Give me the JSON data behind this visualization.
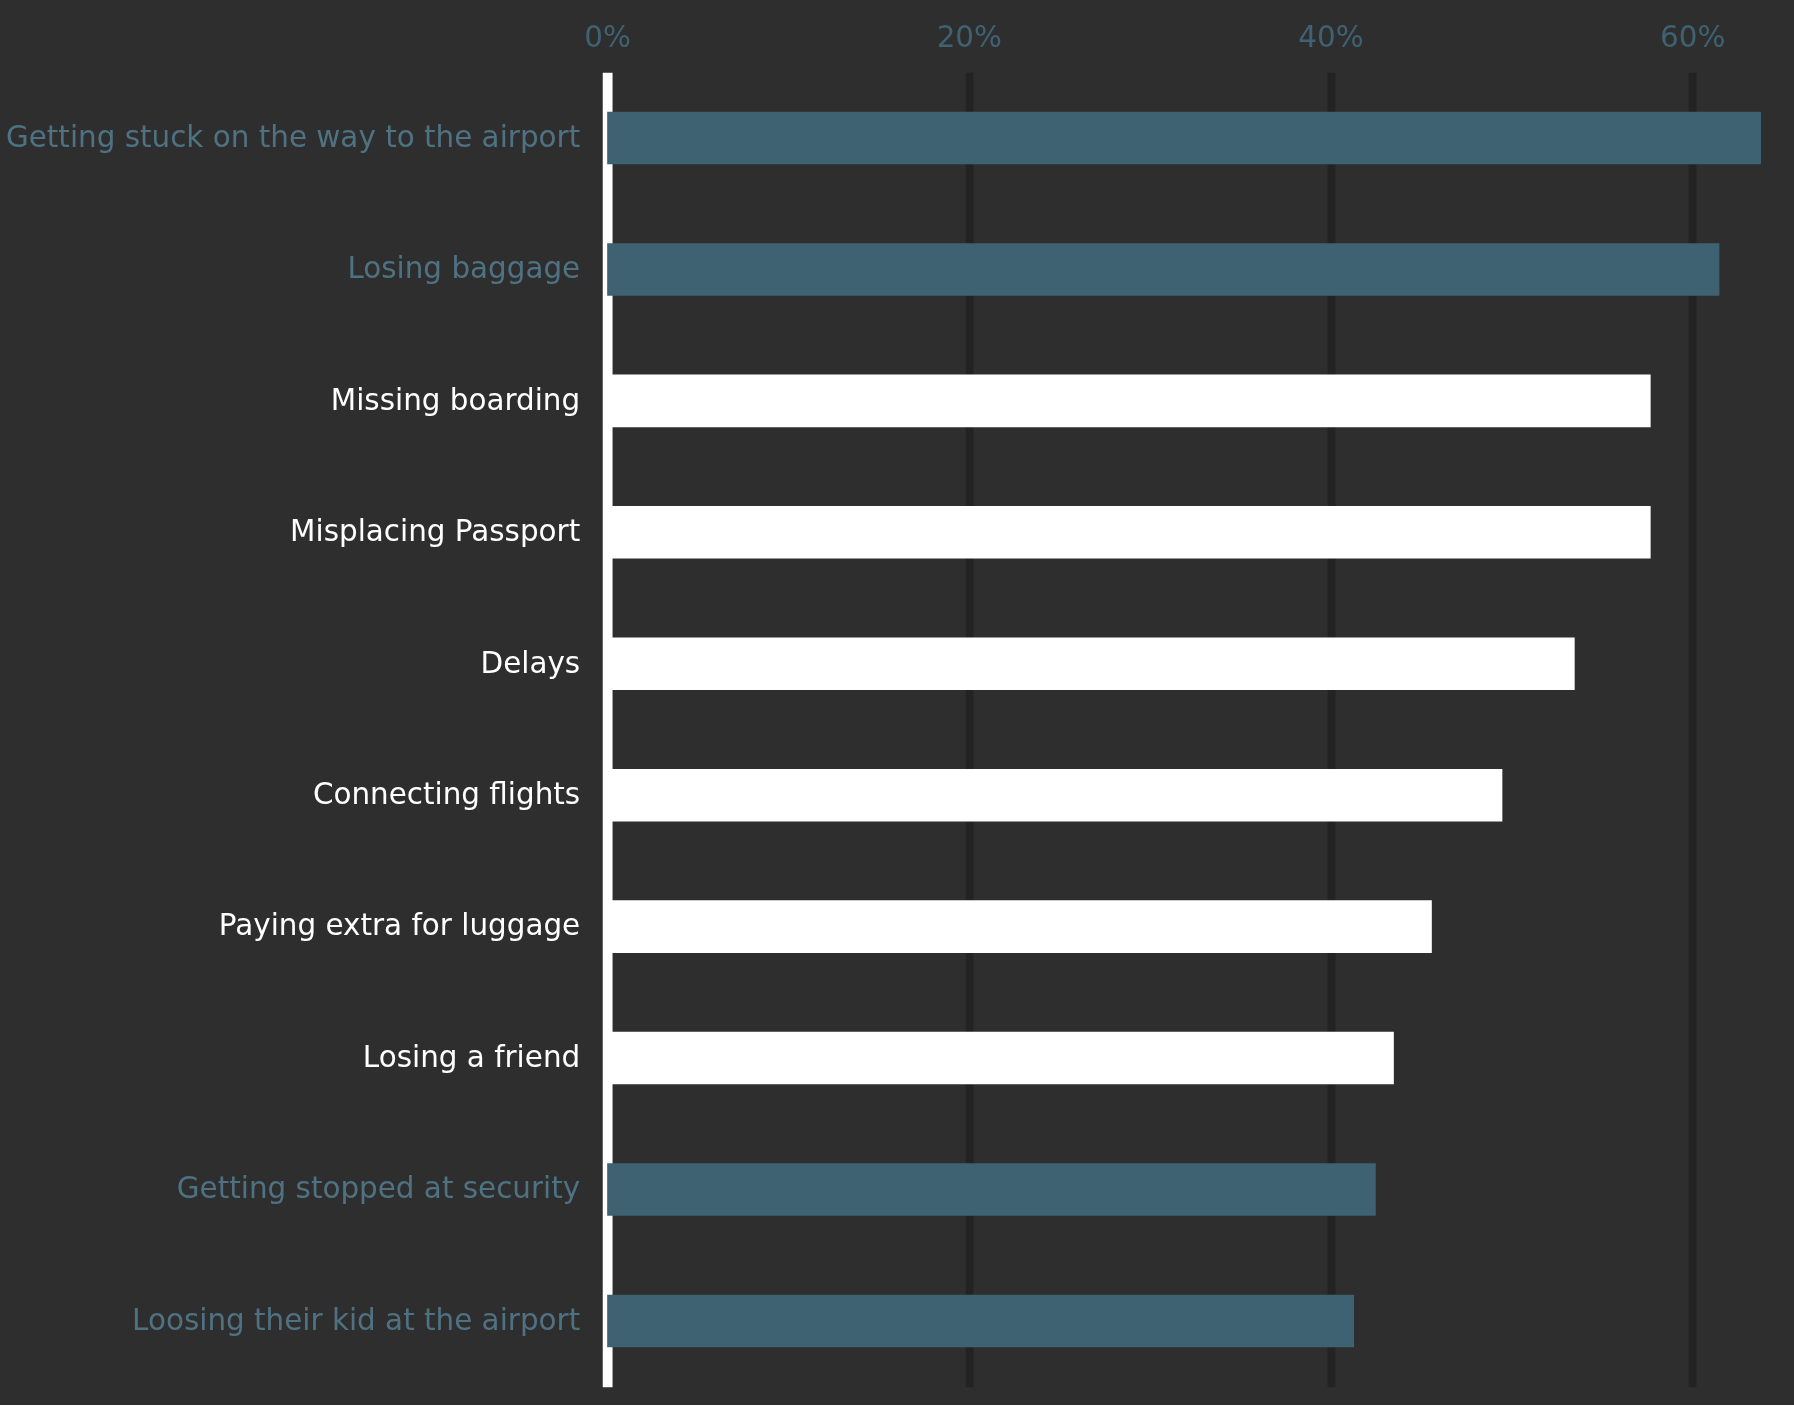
{
  "chart_data": {
    "type": "bar",
    "orientation": "horizontal",
    "categories": [
      "Getting stuck on the way to the airport",
      "Losing baggage",
      "Missing boarding",
      "Misplacing Passport",
      "Delays",
      "Connecting flights",
      "Paying extra for luggage",
      "Losing a friend",
      "Getting stopped at security",
      "Loosing their kid at the airport"
    ],
    "values": [
      63.8,
      61.5,
      57.7,
      57.7,
      53.5,
      49.5,
      45.6,
      43.5,
      42.5,
      41.3
    ],
    "colors": [
      "#3f6272",
      "#3f6272",
      "#ffffff",
      "#ffffff",
      "#ffffff",
      "#ffffff",
      "#ffffff",
      "#ffffff",
      "#3f6272",
      "#3f6272"
    ],
    "xlim": [
      0,
      64
    ],
    "xticks": [
      {
        "value": 0,
        "label": "0%"
      },
      {
        "value": 20,
        "label": "20%"
      },
      {
        "value": 40,
        "label": "40%"
      },
      {
        "value": 60,
        "label": "60%"
      }
    ],
    "grid": "x"
  }
}
